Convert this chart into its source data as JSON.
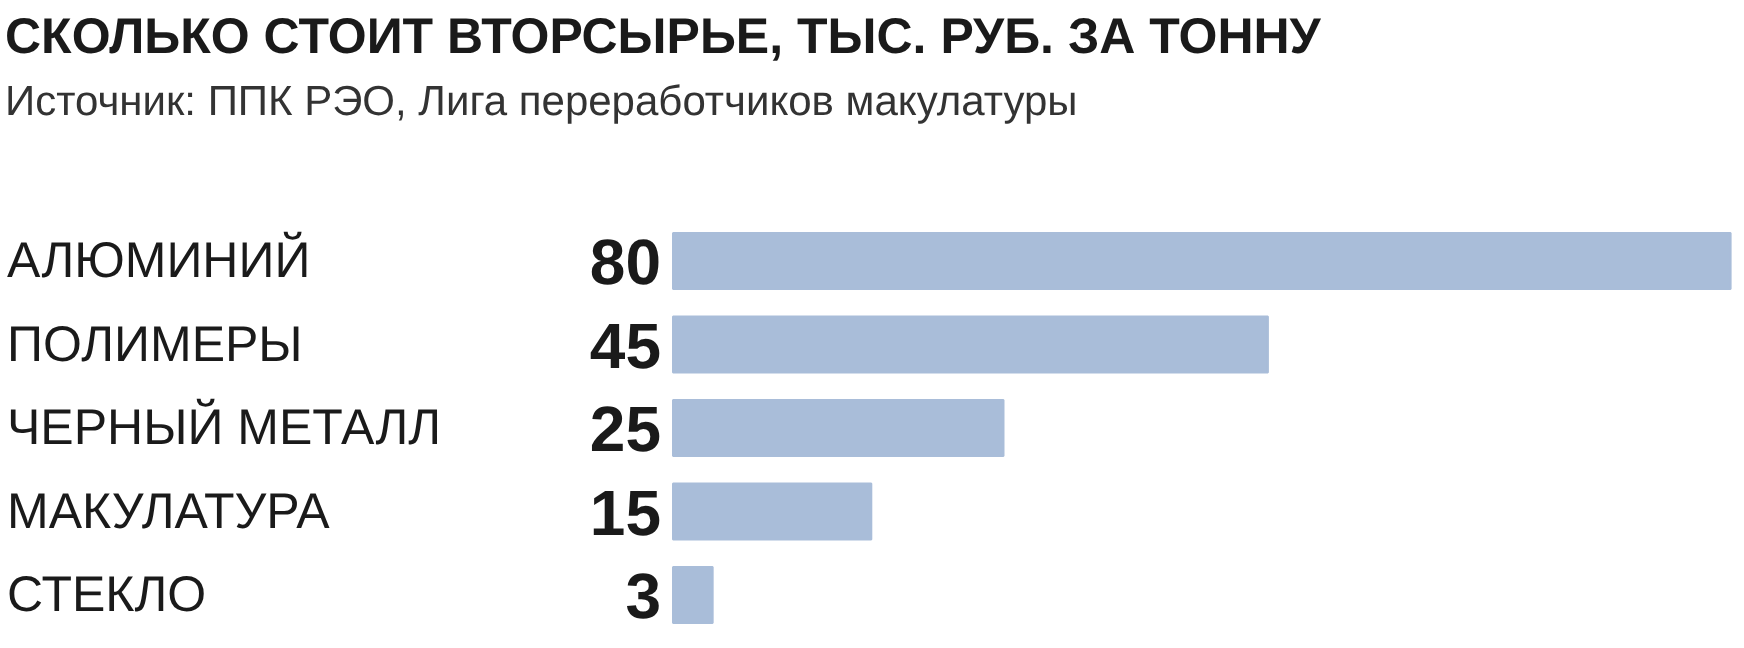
{
  "chart_data": {
    "type": "bar",
    "orientation": "horizontal",
    "title": "СКОЛЬКО СТОИТ ВТОРСЫРЬЕ, ТЫС. РУБ. ЗА ТОННУ",
    "subtitle": "Источник: ППК РЭО, Лига переработчиков макулатуры",
    "categories": [
      "АЛЮМИНИЙ",
      "ПОЛИМЕРЫ",
      "ЧЕРНЫЙ МЕТАЛЛ",
      "МАКУЛАТУРА",
      "СТЕКЛО"
    ],
    "values": [
      80,
      45,
      25,
      15,
      3
    ],
    "color": "#a9bdd9",
    "data_labels": true,
    "grid": false
  }
}
